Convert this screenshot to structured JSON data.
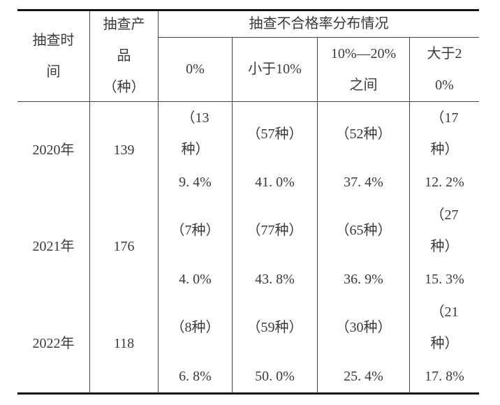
{
  "page": {
    "background": "#ffffff",
    "text_color": "#3a3a3a",
    "thin_border_color": "#444444",
    "heavy_border_color": "#141414"
  },
  "table": {
    "header": {
      "time": "抽查时\n间",
      "product": "抽查产\n品\n（种）",
      "distribution": "抽查不合格率分布情况",
      "sub_columns": [
        "0%",
        "小于10%",
        "10%—20%\n之间",
        "大于2\n0%"
      ]
    },
    "rows": [
      {
        "year": "2020年",
        "count": "139",
        "cells": [
          {
            "kinds": "（13\n种）",
            "percent": "9. 4%"
          },
          {
            "kinds": "（57种）",
            "percent": "41. 0%"
          },
          {
            "kinds": "（52种）",
            "percent": "37. 4%"
          },
          {
            "kinds": "（17\n种）",
            "percent": "12. 2%"
          }
        ]
      },
      {
        "year": "2021年",
        "count": "176",
        "cells": [
          {
            "kinds": "（7种）",
            "percent": "4. 0%"
          },
          {
            "kinds": "（77种）",
            "percent": "43. 8%"
          },
          {
            "kinds": "（65种）",
            "percent": "36. 9%"
          },
          {
            "kinds": "（27\n种）",
            "percent": "15. 3%"
          }
        ]
      },
      {
        "year": "2022年",
        "count": "118",
        "cells": [
          {
            "kinds": "（8种）",
            "percent": "6. 8%"
          },
          {
            "kinds": "（59种）",
            "percent": "50. 0%"
          },
          {
            "kinds": "（30种）",
            "percent": "25. 4%"
          },
          {
            "kinds": "（21\n种）",
            "percent": "17. 8%"
          }
        ]
      }
    ]
  }
}
